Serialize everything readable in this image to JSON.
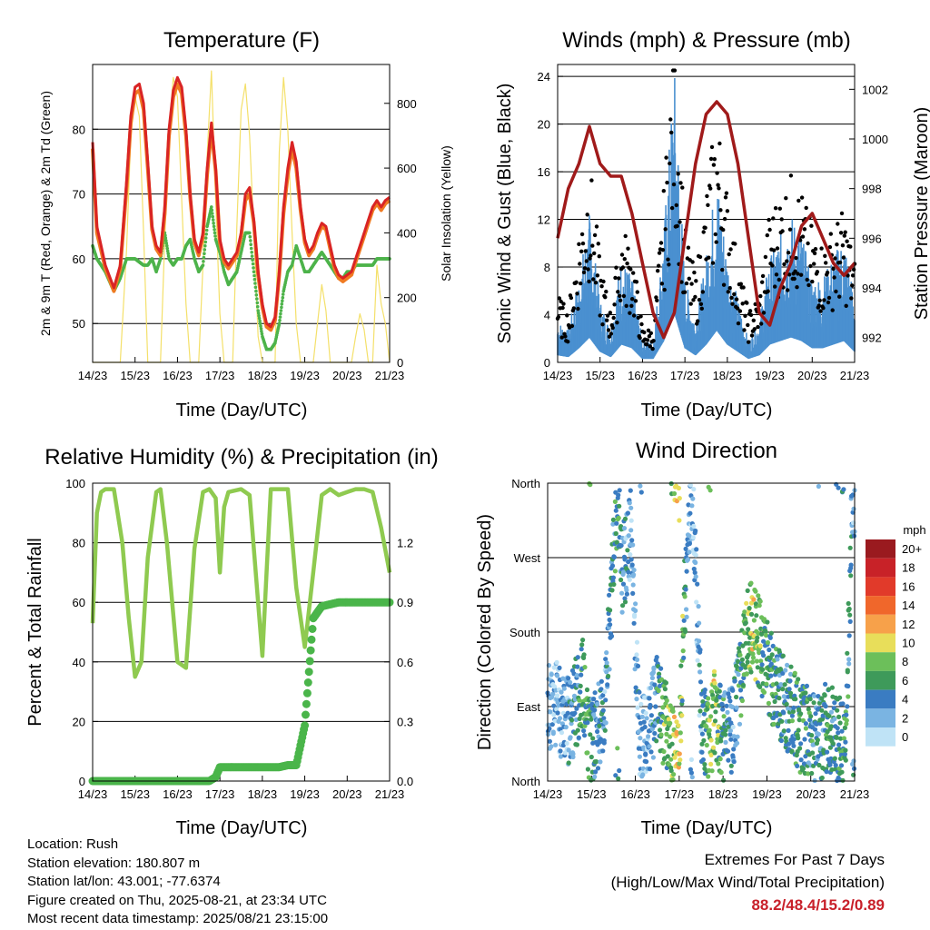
{
  "colors": {
    "temp2m": "#d92424",
    "temp9m": "#f07a22",
    "dewpoint": "#4db34a",
    "solar": "#f4e06a",
    "wind": "#4a90d0",
    "gust": "#000000",
    "pressure": "#a01a1a",
    "rh": "#8fca50",
    "precip": "#4ab54a"
  },
  "x_ticks": [
    "14/23",
    "15/23",
    "16/23",
    "17/23",
    "18/23",
    "19/23",
    "20/23",
    "21/23"
  ],
  "chart_data": [
    {
      "type": "line",
      "title": "Temperature (F)",
      "xlabel": "Time (Day/UTC)",
      "ylabel": "2m & 9m T (Red, Orange) & 2m Td (Green)",
      "y2label": "Solar Insolation (Yellow)",
      "ylim": [
        44,
        90
      ],
      "y_ticks": [
        50,
        60,
        70,
        80
      ],
      "y2lim": [
        0,
        920
      ],
      "y2_ticks": [
        0,
        200,
        400,
        600,
        800
      ],
      "grid": true,
      "x": [
        0,
        0.1,
        0.3,
        0.5,
        0.65,
        0.8,
        0.9,
        1.0,
        1.1,
        1.2,
        1.3,
        1.4,
        1.5,
        1.6,
        1.7,
        1.8,
        1.9,
        2.0,
        2.1,
        2.2,
        2.3,
        2.4,
        2.5,
        2.6,
        2.7,
        2.8,
        2.9,
        3.0,
        3.1,
        3.2,
        3.3,
        3.4,
        3.5,
        3.6,
        3.7,
        3.8,
        3.9,
        4.0,
        4.1,
        4.2,
        4.3,
        4.4,
        4.5,
        4.6,
        4.7,
        4.8,
        4.9,
        5.0,
        5.1,
        5.2,
        5.3,
        5.4,
        5.5,
        5.6,
        5.7,
        5.8,
        5.9,
        6.0,
        6.1,
        6.2,
        6.3,
        6.4,
        6.5,
        6.6,
        6.7,
        6.8,
        6.9,
        7.0
      ],
      "series": [
        {
          "name": "2m T",
          "values": [
            78,
            65,
            59,
            55.5,
            59,
            72,
            82,
            86.5,
            87,
            84,
            75,
            65,
            62,
            61,
            68,
            80,
            86,
            88,
            86.5,
            80,
            70,
            63,
            61,
            64,
            74,
            81,
            74,
            63,
            60,
            59,
            60,
            61,
            64,
            70,
            71,
            66,
            58,
            53,
            50,
            49.5,
            51,
            58,
            68,
            74,
            78,
            75,
            68,
            63,
            61,
            62,
            64,
            65.5,
            65,
            62,
            59,
            57.5,
            57,
            57.5,
            58,
            60,
            62,
            64,
            66,
            68,
            69,
            68,
            69,
            69.5
          ]
        },
        {
          "name": "9m T",
          "values": [
            77,
            64,
            58.5,
            55,
            58.5,
            71,
            81,
            85.5,
            86,
            83,
            74,
            64.5,
            61.5,
            60.5,
            67,
            79,
            85,
            87,
            85.5,
            79,
            69.5,
            62.5,
            60.5,
            63.5,
            73,
            80,
            73.5,
            62.5,
            59.5,
            58.5,
            59.5,
            60.5,
            63.5,
            69,
            70,
            65.5,
            57.5,
            52.5,
            49.5,
            49,
            50.5,
            57.5,
            67,
            73,
            77,
            74,
            67.5,
            62.5,
            60.5,
            61.5,
            63.5,
            65,
            64.5,
            61.5,
            58.5,
            57,
            56.5,
            57,
            57.5,
            59.5,
            61.5,
            63.5,
            65.5,
            67.5,
            68.5,
            67.5,
            68.5,
            69
          ]
        },
        {
          "name": "2m Td",
          "values": [
            62,
            60,
            58,
            55,
            57,
            60,
            60,
            60,
            59.5,
            59,
            59,
            60,
            58,
            60,
            64,
            60,
            59,
            60,
            60,
            62,
            63,
            60,
            58,
            59,
            65,
            68,
            63,
            61,
            58,
            56,
            57,
            58,
            61,
            64,
            64,
            58,
            52,
            48,
            46,
            46,
            47,
            50,
            55,
            58,
            59,
            62,
            60,
            58,
            58,
            59,
            60,
            61,
            60,
            59,
            58,
            57,
            57,
            58,
            58,
            59,
            59,
            59,
            59,
            59,
            60,
            60,
            60,
            60
          ]
        },
        {
          "name": "Solar",
          "values": [
            0,
            0,
            0,
            0,
            0,
            350,
            700,
            820,
            760,
            400,
            0,
            0,
            0,
            0,
            380,
            720,
            880,
            820,
            500,
            180,
            0,
            0,
            0,
            300,
            640,
            900,
            500,
            150,
            0,
            0,
            0,
            420,
            780,
            860,
            700,
            400,
            80,
            0,
            0,
            0,
            0,
            650,
            880,
            720,
            400,
            120,
            0,
            0,
            0,
            0,
            120,
            240,
            160,
            0,
            0,
            0,
            0,
            0,
            0,
            80,
            150,
            100,
            0,
            0,
            300,
            180,
            120,
            0
          ]
        }
      ]
    },
    {
      "type": "scatter",
      "title": "Winds (mph) & Pressure (mb)",
      "xlabel": "Time (Day/UTC)",
      "ylabel": "Sonic Wind & Gust (Blue, Black)",
      "y2label": "Station Pressure (Maroon)",
      "ylim": [
        0,
        25
      ],
      "y_ticks": [
        0,
        4,
        8,
        12,
        16,
        20,
        24
      ],
      "y2lim": [
        991,
        1003
      ],
      "y2_ticks": [
        992,
        994,
        996,
        998,
        1000,
        1002
      ],
      "grid": true,
      "x": [
        0,
        0.25,
        0.5,
        0.75,
        1.0,
        1.25,
        1.5,
        1.75,
        2.0,
        2.25,
        2.5,
        2.75,
        3.0,
        3.25,
        3.5,
        3.75,
        4.0,
        4.25,
        4.5,
        4.75,
        5.0,
        5.25,
        5.5,
        5.75,
        6.0,
        6.25,
        6.5,
        6.75,
        7.0
      ],
      "series": [
        {
          "name": "Sonic Wind",
          "values": [
            2,
            1.5,
            4,
            7,
            3,
            1.5,
            5,
            4,
            1,
            1,
            6,
            14,
            4,
            2,
            5,
            9,
            5,
            3,
            1,
            2,
            5,
            6,
            7,
            6,
            4,
            4,
            5,
            6,
            3
          ]
        },
        {
          "name": "Gust",
          "values": [
            4,
            3,
            8,
            12,
            6,
            3,
            8,
            7,
            2,
            2,
            10,
            20,
            8,
            5,
            10,
            15,
            10,
            6,
            3,
            4,
            9,
            10,
            11,
            10,
            8,
            7,
            8,
            9,
            6
          ]
        },
        {
          "name": "Station Pressure",
          "values": [
            996,
            998,
            999,
            1000.5,
            999,
            998.5,
            998.5,
            997,
            995,
            993,
            992,
            993,
            996,
            999,
            1001,
            1001.5,
            1001,
            999,
            996,
            993,
            992.5,
            994,
            995,
            996.5,
            997,
            996,
            995,
            994.5,
            995
          ]
        }
      ]
    },
    {
      "type": "line",
      "title": "Relative Humidity (%) & Precipitation (in)",
      "xlabel": "Time (Day/UTC)",
      "ylabel": "Percent & Total Rainfall",
      "ylim": [
        0,
        100
      ],
      "y_ticks": [
        0,
        20,
        40,
        60,
        80,
        100
      ],
      "y2lim": [
        0,
        1.5
      ],
      "y2_ticks": [
        "0.0",
        "0.3",
        "0.6",
        "0.9",
        "1.2"
      ],
      "grid": true,
      "x": [
        0,
        0.1,
        0.2,
        0.3,
        0.5,
        0.7,
        0.85,
        1.0,
        1.15,
        1.3,
        1.5,
        1.6,
        1.75,
        2.0,
        2.2,
        2.4,
        2.6,
        2.75,
        2.9,
        3.0,
        3.1,
        3.2,
        3.5,
        3.7,
        3.9,
        4.0,
        4.1,
        4.2,
        4.4,
        4.6,
        4.8,
        5.0,
        5.2,
        5.4,
        5.6,
        5.8,
        6.0,
        6.2,
        6.4,
        6.6,
        6.8,
        7.0
      ],
      "series": [
        {
          "name": "Relative Humidity",
          "values": [
            53,
            90,
            97,
            98,
            98,
            80,
            55,
            35,
            40,
            75,
            97,
            98,
            80,
            40,
            38,
            78,
            97,
            98,
            95,
            70,
            92,
            97,
            98,
            96,
            60,
            42,
            70,
            98,
            98,
            98,
            65,
            45,
            70,
            96,
            98,
            96,
            97,
            98,
            98,
            97,
            85,
            70
          ]
        },
        {
          "name": "Total Rainfall",
          "values": [
            0,
            0,
            0,
            0,
            0,
            0,
            0,
            0,
            0,
            0,
            0,
            0,
            0,
            0,
            0,
            0,
            0,
            0,
            0.02,
            0.07,
            0.07,
            0.07,
            0.07,
            0.07,
            0.07,
            0.07,
            0.07,
            0.07,
            0.07,
            0.08,
            0.08,
            0.28,
            0.82,
            0.88,
            0.89,
            0.9,
            0.9,
            0.9,
            0.9,
            0.9,
            0.9,
            0.9
          ]
        }
      ]
    },
    {
      "type": "scatter",
      "title": "Wind Direction",
      "xlabel": "Time (Day/UTC)",
      "ylabel": "Direction (Colored By Speed)",
      "y_ticks": [
        "North",
        "East",
        "South",
        "West",
        "North"
      ],
      "legend_title": "mph",
      "legend_labels": [
        "20+",
        "18",
        "16",
        "14",
        "12",
        "10",
        "8",
        "6",
        "4",
        "2",
        "0"
      ],
      "legend_colors": [
        "#9a1a1f",
        "#c82228",
        "#e13a2a",
        "#f0672b",
        "#f7a14a",
        "#e8de5a",
        "#6cbf5a",
        "#3e9a5a",
        "#3a7cc2",
        "#7ab4e2",
        "#bfe3f6"
      ],
      "grid": true,
      "x": [
        0.2,
        0.5,
        0.8,
        0.9,
        1.0,
        1.3,
        1.6,
        1.7,
        1.9,
        2.1,
        2.3,
        2.5,
        3.0,
        3.1,
        3.3,
        3.5,
        3.7,
        3.8,
        4.0,
        4.2,
        4.6,
        4.7,
        4.8,
        5.0,
        5.2,
        5.4,
        5.6,
        5.8,
        6.0,
        6.2,
        6.4,
        6.6,
        6.8,
        6.95
      ],
      "series": [
        {
          "name": "Direction (deg)",
          "values": [
            90,
            70,
            120,
            60,
            45,
            80,
            360,
            250,
            300,
            40,
            60,
            100,
            10,
            200,
            350,
            80,
            40,
            90,
            50,
            60,
            190,
            180,
            170,
            140,
            110,
            95,
            80,
            60,
            60,
            50,
            70,
            50,
            40,
            350
          ]
        },
        {
          "name": "Speed (mph)",
          "values": [
            2,
            3,
            6,
            7,
            5,
            3,
            6,
            4,
            2,
            3,
            2,
            5,
            10,
            6,
            2,
            3,
            8,
            9,
            5,
            3,
            8,
            10,
            7,
            6,
            5,
            4,
            5,
            6,
            5,
            4,
            5,
            5,
            6,
            3
          ]
        }
      ]
    }
  ],
  "footer": {
    "location": "Location: Rush",
    "elevation": "Station elevation: 180.807 m",
    "latlon": "Station lat/lon: 43.001; -77.6374",
    "created": "Figure created on Thu, 2025-08-21, at 23:34 UTC",
    "recent": "Most recent data timestamp: 2025/08/21 23:15:00"
  },
  "extremes": {
    "title": "Extremes For Past 7 Days",
    "subtitle": "(High/Low/Max Wind/Total Precipitation)",
    "values": "88.2/48.4/15.2/0.89"
  }
}
